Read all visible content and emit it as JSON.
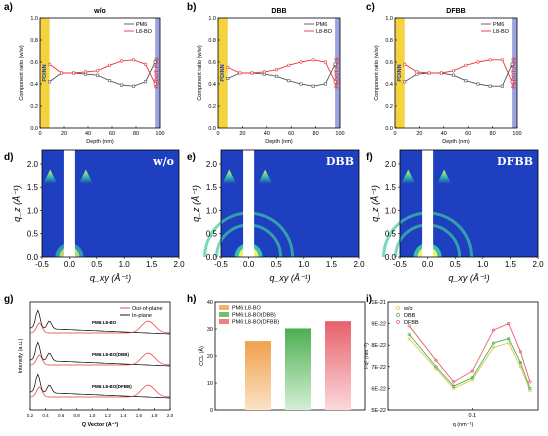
{
  "chart_data": [
    {
      "panel": "a)",
      "type": "line",
      "title": "w/o",
      "xlabel": "Depth (nm)",
      "ylabel": "Component ratio (w/w)",
      "xlim": [
        0,
        100
      ],
      "ylim": [
        0.0,
        1.0
      ],
      "xticks": [
        "0",
        "20",
        "40",
        "60",
        "80",
        "100"
      ],
      "yticks": [
        "0.0",
        "0.2",
        "0.4",
        "0.6",
        "0.8",
        "1.0"
      ],
      "bands": [
        {
          "label": "PDINN",
          "from": 0,
          "to": 8,
          "color": "#f5d33f"
        },
        {
          "label": "PEDOT:PSS",
          "from": 96,
          "to": 100,
          "color": "#9aa2e0"
        }
      ],
      "legend": "top-right",
      "series": [
        {
          "name": "PM6",
          "color": "#555555",
          "x": [
            8,
            18,
            28,
            38,
            48,
            58,
            68,
            78,
            88,
            96
          ],
          "values": [
            0.42,
            0.5,
            0.5,
            0.49,
            0.48,
            0.43,
            0.39,
            0.38,
            0.42,
            0.6
          ]
        },
        {
          "name": "L8-BO",
          "color": "#e8343a",
          "x": [
            8,
            18,
            28,
            38,
            48,
            58,
            68,
            78,
            88,
            96
          ],
          "values": [
            0.58,
            0.5,
            0.5,
            0.51,
            0.52,
            0.57,
            0.61,
            0.62,
            0.58,
            0.4
          ]
        }
      ]
    },
    {
      "panel": "b)",
      "type": "line",
      "title": "DBB",
      "xlabel": "Depth (nm)",
      "ylabel": "Component ratio (w/w)",
      "xlim": [
        0,
        100
      ],
      "ylim": [
        0.0,
        1.0
      ],
      "xticks": [
        "0",
        "20",
        "40",
        "60",
        "80",
        "100"
      ],
      "yticks": [
        "0.0",
        "0.2",
        "0.4",
        "0.6",
        "0.8",
        "1.0"
      ],
      "bands": [
        {
          "label": "PDINN",
          "from": 0,
          "to": 8,
          "color": "#f5d33f"
        },
        {
          "label": "PEDOT:PSS",
          "from": 96,
          "to": 100,
          "color": "#9aa2e0"
        }
      ],
      "legend": "top-right",
      "series": [
        {
          "name": "PM6",
          "color": "#555555",
          "x": [
            8,
            18,
            28,
            38,
            48,
            58,
            68,
            78,
            88,
            96
          ],
          "values": [
            0.45,
            0.5,
            0.5,
            0.49,
            0.47,
            0.43,
            0.4,
            0.38,
            0.4,
            0.58
          ]
        },
        {
          "name": "L8-BO",
          "color": "#e8343a",
          "x": [
            8,
            18,
            28,
            38,
            48,
            58,
            68,
            78,
            88,
            96
          ],
          "values": [
            0.55,
            0.5,
            0.5,
            0.51,
            0.53,
            0.57,
            0.6,
            0.62,
            0.6,
            0.42
          ]
        }
      ]
    },
    {
      "panel": "c)",
      "type": "line",
      "title": "DFBB",
      "xlabel": "Depth (nm)",
      "ylabel": "Component ratio (w/w)",
      "xlim": [
        0,
        100
      ],
      "ylim": [
        0.0,
        1.0
      ],
      "xticks": [
        "0",
        "20",
        "40",
        "60",
        "80",
        "100"
      ],
      "yticks": [
        "0.0",
        "0.2",
        "0.4",
        "0.6",
        "0.8",
        "1.0"
      ],
      "bands": [
        {
          "label": "PDINN",
          "from": 0,
          "to": 8,
          "color": "#f5d33f"
        },
        {
          "label": "PEDOT:PSS",
          "from": 96,
          "to": 100,
          "color": "#9aa2e0"
        }
      ],
      "legend": "top-right",
      "series": [
        {
          "name": "PM6",
          "color": "#555555",
          "x": [
            8,
            18,
            28,
            38,
            48,
            58,
            68,
            78,
            88,
            96
          ],
          "values": [
            0.42,
            0.49,
            0.5,
            0.5,
            0.48,
            0.43,
            0.4,
            0.38,
            0.38,
            0.58
          ]
        },
        {
          "name": "L8-BO",
          "color": "#e8343a",
          "x": [
            8,
            18,
            28,
            38,
            48,
            58,
            68,
            78,
            88,
            96
          ],
          "values": [
            0.58,
            0.51,
            0.5,
            0.5,
            0.52,
            0.57,
            0.6,
            0.62,
            0.62,
            0.42
          ]
        }
      ]
    },
    {
      "panel": "d)",
      "type": "heatmap",
      "label": "w/o",
      "xlabel": "q_xy (Å⁻¹)",
      "ylabel": "q_z (Å⁻¹)",
      "xlim": [
        -0.5,
        2.0
      ],
      "ylim": [
        0.0,
        2.3
      ],
      "xticks": [
        "-0.5",
        "0.0",
        "0.5",
        "1.0",
        "1.5",
        "2.0"
      ],
      "yticks": [
        "0.0",
        "0.5",
        "1.0",
        "1.5",
        "2.0"
      ]
    },
    {
      "panel": "e)",
      "type": "heatmap",
      "label": "DBB",
      "xlabel": "q_xy (Å⁻¹)",
      "ylabel": "q_z (Å⁻¹)",
      "xlim": [
        -0.5,
        2.0
      ],
      "ylim": [
        0.0,
        2.3
      ],
      "xticks": [
        "-0.5",
        "0.0",
        "0.5",
        "1.0",
        "1.5",
        "2.0"
      ],
      "yticks": [
        "0.0",
        "0.5",
        "1.0",
        "1.5",
        "2.0"
      ]
    },
    {
      "panel": "f)",
      "type": "heatmap",
      "label": "DFBB",
      "xlabel": "q_xy (Å⁻¹)",
      "ylabel": "q_z (Å⁻¹)",
      "xlim": [
        -0.5,
        2.0
      ],
      "ylim": [
        0.0,
        2.3
      ],
      "xticks": [
        "-0.5",
        "0.0",
        "0.5",
        "1.0",
        "1.5",
        "2.0"
      ],
      "yticks": [
        "0.0",
        "0.5",
        "1.0",
        "1.5",
        "2.0"
      ]
    },
    {
      "panel": "g)",
      "type": "line",
      "xlabel": "Q Vector (A⁻¹)",
      "ylabel": "Intensity (a.u.)",
      "xlim": [
        0.2,
        2.0
      ],
      "xticks": [
        "0.2",
        "0.4",
        "0.6",
        "0.8",
        "1.0",
        "1.2",
        "1.4",
        "1.6",
        "1.8",
        "2.0"
      ],
      "legend": "top-right",
      "legend_entries": [
        {
          "name": "Out-of-plane",
          "color": "#e8343a"
        },
        {
          "name": "In-plane",
          "color": "#000000"
        }
      ],
      "curve_labels": [
        "PM6:L8-BO",
        "PM6:L8-BO(DBB)",
        "PM6:L8-BO(DFBB)"
      ]
    },
    {
      "panel": "h)",
      "type": "bar",
      "ylabel": "CCL (Å)",
      "ylim": [
        0,
        40
      ],
      "yticks": [
        "0",
        "10",
        "20",
        "30",
        "40"
      ],
      "categories": [
        "PM6:L8-BO",
        "PM6:L8-BO(DBB)",
        "PM6:L8-BO(DFBB)"
      ],
      "values": [
        25.5,
        30.2,
        32.9
      ],
      "colors": [
        "#f0a04b",
        "#4caf50",
        "#e8606a"
      ],
      "legend": "top-left"
    },
    {
      "panel": "i)",
      "type": "scatter",
      "xlabel": "q (nm⁻¹)",
      "ylabel": "I·q² (nm⁻²)",
      "yticks": [
        "5E-22",
        "6E-22",
        "7E-22",
        "8E-22",
        "9E-22",
        "1E-21"
      ],
      "xtick_label": "0.1",
      "legend": "top-left",
      "series": [
        {
          "name": "w/o",
          "color": "#e0c84a",
          "x": [
            0.03,
            0.05,
            0.07,
            0.1,
            0.15,
            0.2,
            0.25,
            0.3
          ],
          "values": [
            8.3e-22,
            6.9e-22,
            6e-22,
            6.4e-22,
            7.9e-22,
            8.1e-22,
            7e-22,
            5.9e-22
          ]
        },
        {
          "name": "DBB",
          "color": "#4caf50",
          "x": [
            0.03,
            0.05,
            0.07,
            0.1,
            0.15,
            0.2,
            0.25,
            0.3
          ],
          "values": [
            8.5e-22,
            7e-22,
            6.1e-22,
            6.5e-22,
            8.1e-22,
            8.3e-22,
            7.2e-22,
            6e-22
          ]
        },
        {
          "name": "DFBB",
          "color": "#e8606a",
          "x": [
            0.03,
            0.05,
            0.07,
            0.1,
            0.15,
            0.2,
            0.25,
            0.3
          ],
          "values": [
            8.9e-22,
            7.3e-22,
            6.3e-22,
            6.8e-22,
            8.7e-22,
            9e-22,
            7.7e-22,
            6.3e-22
          ]
        }
      ]
    }
  ]
}
